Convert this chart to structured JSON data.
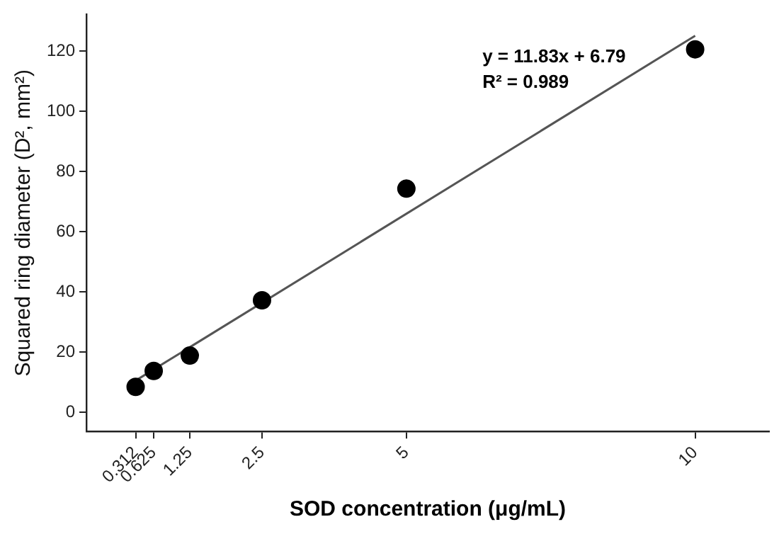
{
  "chart_data": {
    "type": "scatter",
    "xlabel": "SOD concentration (μg/mL)",
    "ylabel": "Squared ring diameter (D², mm²)",
    "annotations": [
      "y = 11.83x + 6.79",
      "R² = 0.989"
    ],
    "xlim": [
      -0.54,
      11.28
    ],
    "ylim": [
      -6.4,
      132.2
    ],
    "xticks": [
      0.312,
      0.625,
      1.25,
      2.5,
      5,
      10
    ],
    "yticks": [
      0,
      20,
      40,
      60,
      80,
      100,
      120
    ],
    "grid": false,
    "legend": false,
    "marker": "circle",
    "series": [
      {
        "color": "#000000",
        "x": [
          0.312,
          0.625,
          1.25,
          2.5,
          5,
          10
        ],
        "values": [
          8.4,
          13.7,
          18.8,
          37.2,
          74.3,
          120.6
        ]
      },
      {
        "type": "line",
        "color": "#555555",
        "marker": "none",
        "line_style": "solid",
        "x": [
          0.312,
          10
        ],
        "values": [
          10.5,
          125.1
        ]
      }
    ]
  }
}
